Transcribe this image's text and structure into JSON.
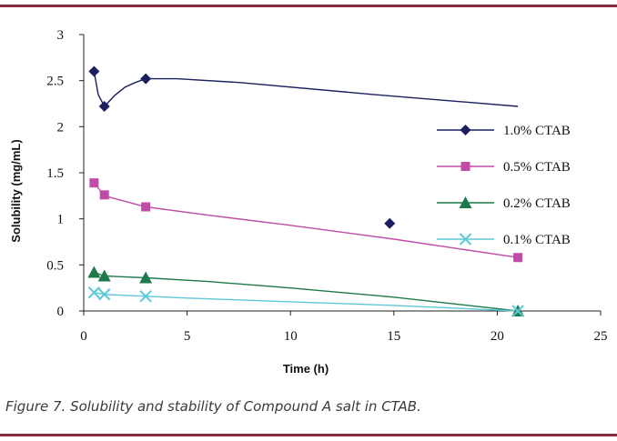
{
  "chart_data": {
    "type": "line",
    "title": "",
    "xlabel": "Time (h)",
    "ylabel": "Solubility (mg/mL)",
    "xlim": [
      0,
      25
    ],
    "ylim": [
      0,
      3
    ],
    "xticks": [
      0,
      5,
      10,
      15,
      20,
      25
    ],
    "yticks": [
      0,
      0.5,
      1,
      1.5,
      2,
      2.5,
      3
    ],
    "ytick_labels": [
      "0",
      "0.5",
      "1",
      "1.5",
      "2",
      "2.5",
      "3"
    ],
    "legend_position": "right",
    "series": [
      {
        "name": "1.0% CTAB",
        "color": "#1c1f5e",
        "marker": "diamond",
        "points": [
          [
            0.5,
            2.6
          ],
          [
            1,
            2.22
          ],
          [
            3,
            2.52
          ],
          [
            14.8,
            0.95
          ]
        ],
        "curve": [
          [
            0.5,
            2.6
          ],
          [
            0.7,
            2.35
          ],
          [
            1,
            2.22
          ],
          [
            1.5,
            2.34
          ],
          [
            2,
            2.43
          ],
          [
            2.5,
            2.48
          ],
          [
            3,
            2.52
          ],
          [
            4.5,
            2.52
          ],
          [
            7.5,
            2.48
          ],
          [
            14,
            2.35
          ],
          [
            21,
            2.22
          ]
        ]
      },
      {
        "name": "0.5% CTAB",
        "color": "#c04ca8",
        "marker": "square",
        "points": [
          [
            0.5,
            1.39
          ],
          [
            1,
            1.26
          ],
          [
            3,
            1.13
          ],
          [
            21,
            0.58
          ]
        ],
        "curve": [
          [
            0.5,
            1.39
          ],
          [
            1,
            1.25
          ],
          [
            3,
            1.13
          ],
          [
            6,
            1.04
          ],
          [
            10,
            0.93
          ],
          [
            15,
            0.78
          ],
          [
            21,
            0.58
          ]
        ]
      },
      {
        "name": "0.2% CTAB",
        "color": "#1e7a4c",
        "marker": "triangle",
        "points": [
          [
            0.5,
            0.42
          ],
          [
            1,
            0.38
          ],
          [
            3,
            0.36
          ],
          [
            21,
            0.0
          ]
        ],
        "curve": [
          [
            0.5,
            0.42
          ],
          [
            1,
            0.38
          ],
          [
            3,
            0.36
          ],
          [
            6,
            0.32
          ],
          [
            10,
            0.25
          ],
          [
            15,
            0.15
          ],
          [
            21,
            0.0
          ]
        ]
      },
      {
        "name": "0.1% CTAB",
        "color": "#5ec8d8",
        "marker": "x",
        "points": [
          [
            0.5,
            0.2
          ],
          [
            1,
            0.18
          ],
          [
            3,
            0.16
          ],
          [
            21,
            0.0
          ]
        ],
        "curve": [
          [
            0.5,
            0.2
          ],
          [
            1,
            0.18
          ],
          [
            3,
            0.16
          ],
          [
            5,
            0.14
          ],
          [
            10,
            0.1
          ],
          [
            15,
            0.06
          ],
          [
            21,
            0.0
          ]
        ]
      }
    ]
  },
  "caption": "Figure 7. Solubility and stability of Compound A salt in CTAB.",
  "rule_color": "#8a2a3e"
}
